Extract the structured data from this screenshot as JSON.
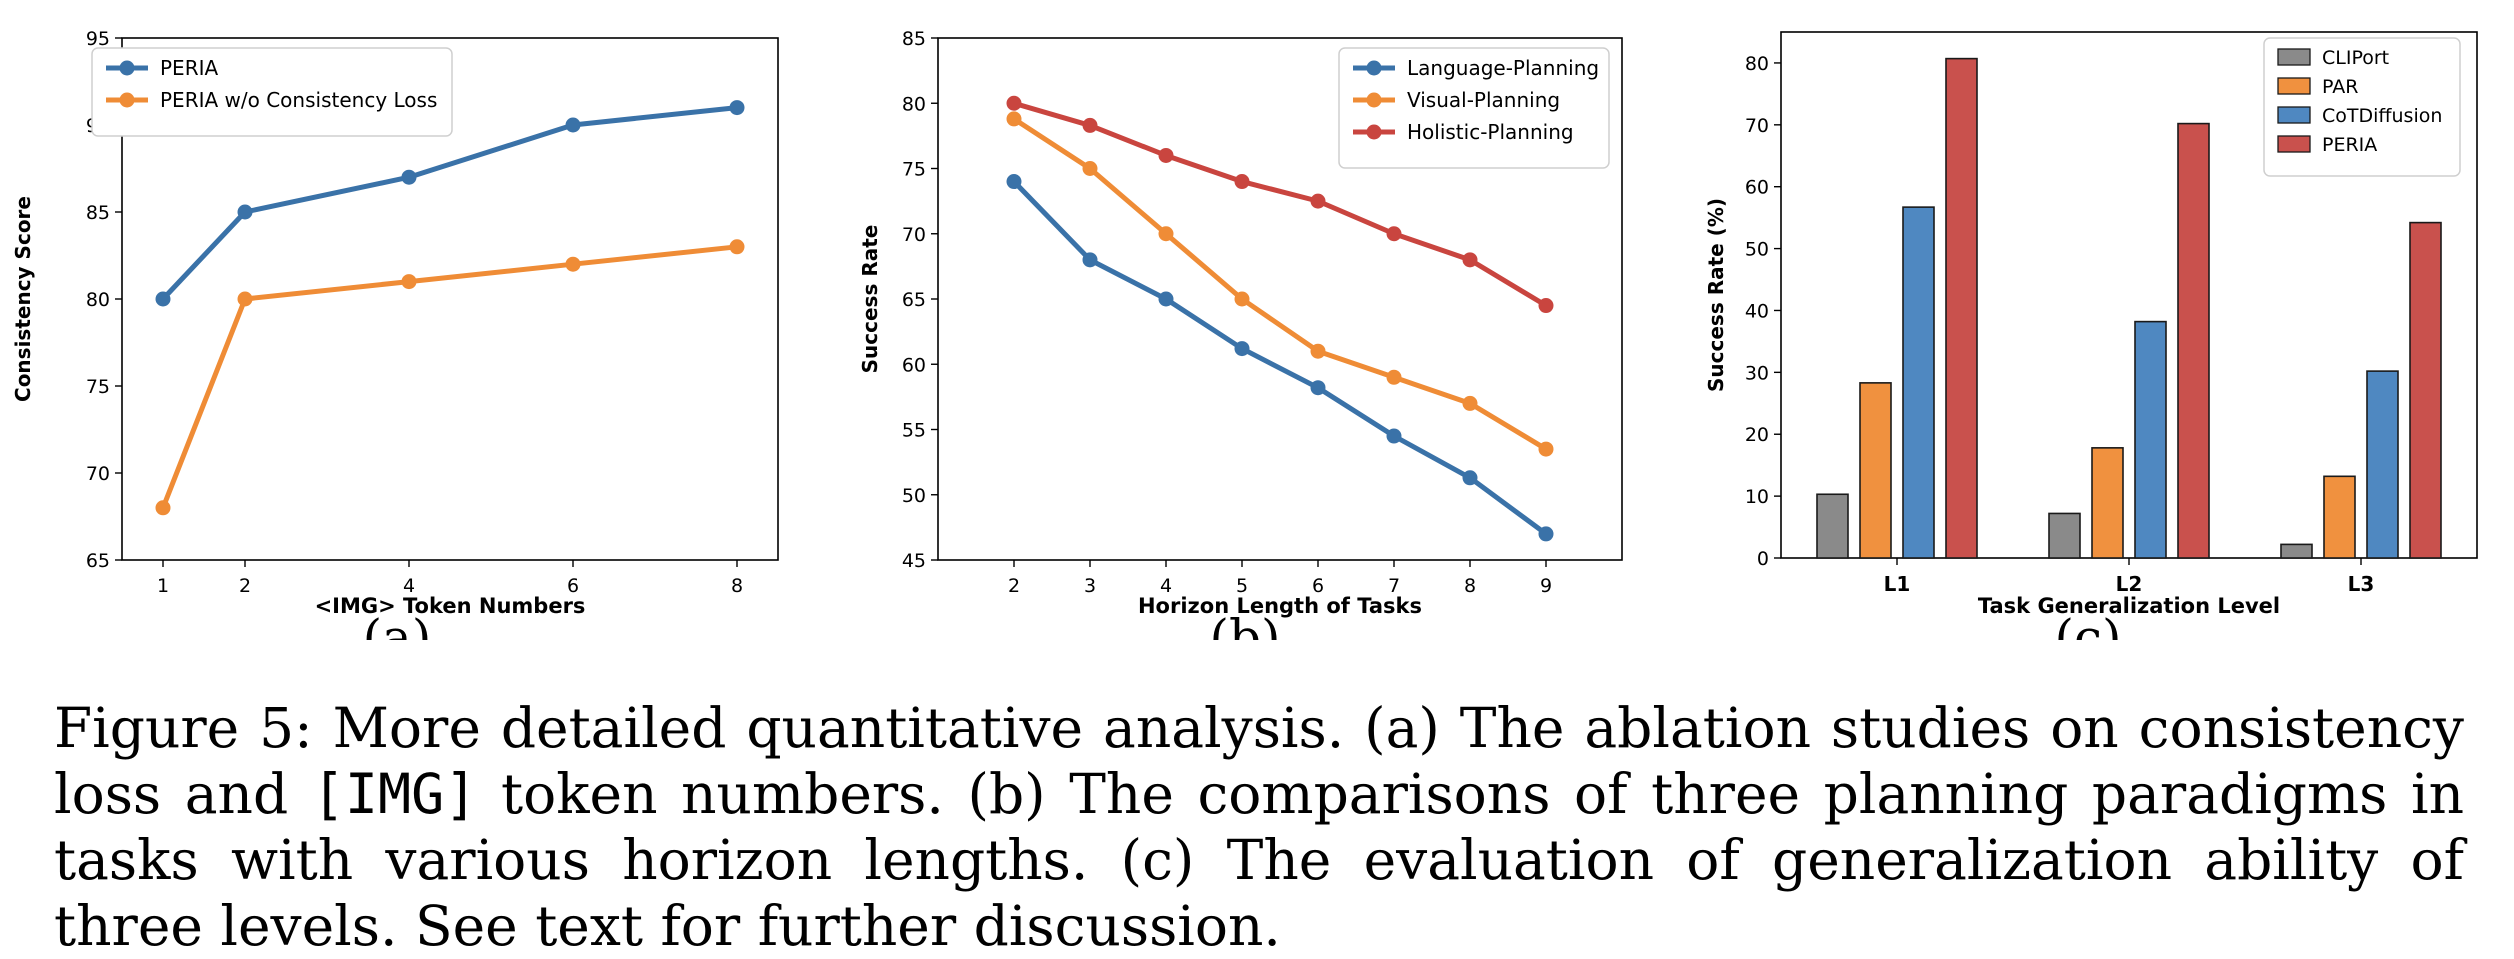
{
  "colors": {
    "blue": "#3a72a8",
    "orange": "#ef8c36",
    "red": "#c9453f",
    "gray": "#8a8a8a",
    "bar_blue": "#4f88c1",
    "bar_orange": "#f0913f",
    "bar_red": "#c9514d"
  },
  "chart_data": [
    {
      "type": "line",
      "panel_label": "(a)",
      "xlabel": "<IMG> Token Numbers",
      "ylabel": "Consistency Score",
      "x": [
        1,
        2,
        4,
        6,
        8
      ],
      "xticks": [
        1,
        2,
        4,
        6,
        8
      ],
      "xlim": [
        0.5,
        8.5
      ],
      "ylim": [
        65,
        95
      ],
      "yticks": [
        65,
        70,
        75,
        80,
        85,
        90,
        95
      ],
      "grid": false,
      "legend": "top-left",
      "series": [
        {
          "name": "PERIA",
          "values": [
            80,
            85,
            87,
            90,
            91
          ],
          "color": "#3a72a8"
        },
        {
          "name": "PERIA w/o Consistency Loss",
          "values": [
            68,
            80,
            81,
            82,
            83
          ],
          "color": "#ef8c36"
        }
      ]
    },
    {
      "type": "line",
      "panel_label": "(b)",
      "xlabel": "Horizon Length of Tasks",
      "ylabel": "Success Rate",
      "x": [
        2,
        3,
        4,
        5,
        6,
        7,
        8,
        9
      ],
      "xticks": [
        2,
        3,
        4,
        5,
        6,
        7,
        8,
        9
      ],
      "xlim": [
        1,
        10
      ],
      "ylim": [
        45,
        85
      ],
      "yticks": [
        45,
        50,
        55,
        60,
        65,
        70,
        75,
        80,
        85
      ],
      "grid": false,
      "legend": "top-right",
      "series": [
        {
          "name": "Language-Planning",
          "values": [
            74,
            68,
            65,
            61.2,
            58.2,
            54.5,
            51.3,
            47
          ],
          "color": "#3a72a8"
        },
        {
          "name": "Visual-Planning",
          "values": [
            78.8,
            75,
            70,
            65,
            61,
            59,
            57,
            53.5
          ],
          "color": "#ef8c36"
        },
        {
          "name": "Holistic-Planning",
          "values": [
            80,
            78.3,
            76,
            74,
            72.5,
            70,
            68,
            64.5
          ],
          "color": "#c9453f"
        }
      ]
    },
    {
      "type": "bar",
      "panel_label": "(c)",
      "xlabel": "Task Generalization Level",
      "ylabel": "Success Rate (%)",
      "categories": [
        "L1",
        "L2",
        "L3"
      ],
      "ylim": [
        0,
        85
      ],
      "yticks": [
        0,
        10,
        20,
        30,
        40,
        50,
        60,
        70,
        80
      ],
      "grid": false,
      "legend": "top-right",
      "series": [
        {
          "name": "CLIPort",
          "values": [
            10.3,
            7.2,
            2.2
          ],
          "color": "#8a8a8a"
        },
        {
          "name": "PAR",
          "values": [
            28.3,
            17.8,
            13.2
          ],
          "color": "#f0913f"
        },
        {
          "name": "CoTDiffusion",
          "values": [
            56.7,
            38.2,
            30.2
          ],
          "color": "#4f88c1"
        },
        {
          "name": "PERIA",
          "values": [
            80.7,
            70.2,
            54.2
          ],
          "color": "#c9514d"
        }
      ]
    }
  ],
  "caption": {
    "prefix": "Figure 5: More detailed quantitative analysis. (a) The ablation studies on consistency loss and ",
    "mono": "[IMG]",
    "suffix": " token numbers. (b) The comparisons of three planning paradigms in tasks with various horizon lengths. (c) The evaluation of generalization ability of three levels. See text for further discussion."
  }
}
